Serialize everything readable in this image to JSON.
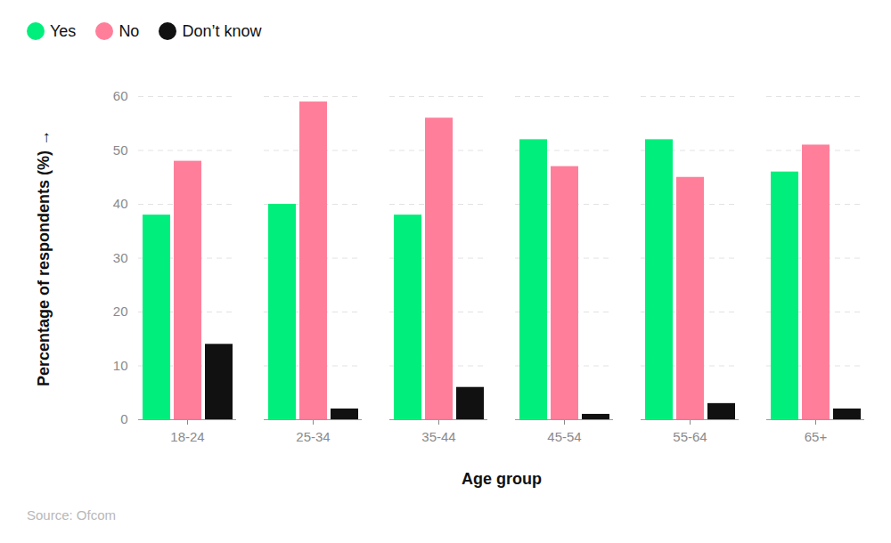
{
  "chart_data": {
    "type": "bar",
    "x_label": "Age group",
    "y_label": "Percentage of respondents (%)",
    "source": "Source: Ofcom",
    "categories": [
      "18-24",
      "25-34",
      "35-44",
      "45-54",
      "55-64",
      "65+"
    ],
    "series": [
      {
        "name": "Yes",
        "color": "#00ef7c",
        "values": [
          38,
          40,
          38,
          52,
          52,
          46
        ]
      },
      {
        "name": "No",
        "color": "#ff7f9b",
        "values": [
          48,
          59,
          56,
          47,
          45,
          51
        ]
      },
      {
        "name": "Don’t know",
        "color": "#111111",
        "values": [
          14,
          2,
          6,
          1,
          3,
          2
        ]
      }
    ],
    "ylim": [
      0,
      60
    ],
    "yticks": [
      0,
      10,
      20,
      30,
      40,
      50,
      60
    ],
    "grid": true,
    "legend": "top-left"
  }
}
